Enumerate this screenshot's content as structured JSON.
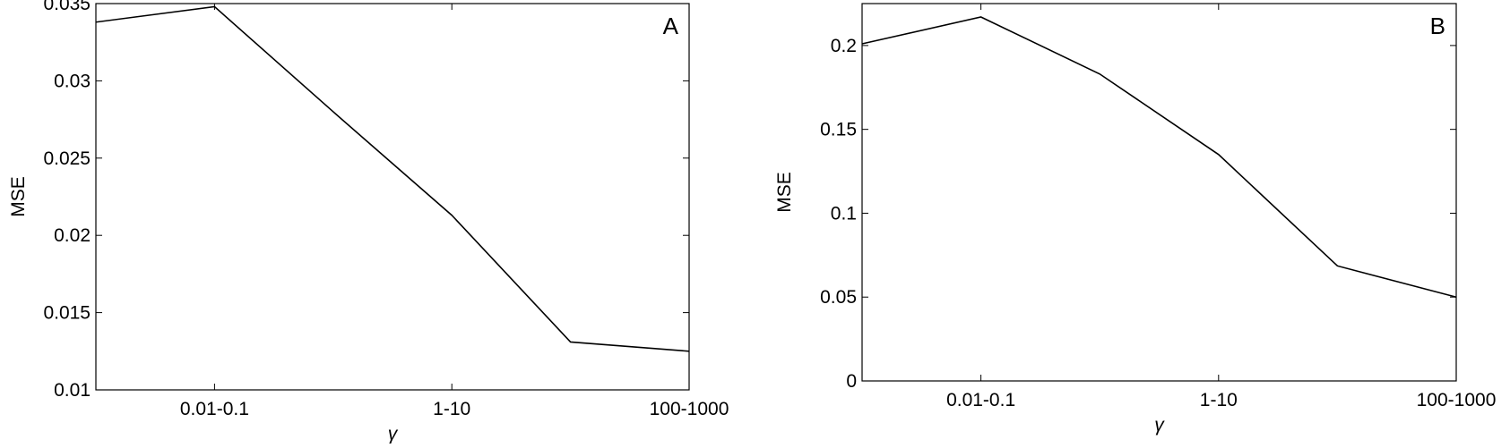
{
  "chart_data": [
    {
      "type": "line",
      "panel_label": "A",
      "y_label": "MSE",
      "x_label": "γ",
      "categories": [
        null,
        "0.01-0.1",
        null,
        "1-10",
        null,
        "100-1000"
      ],
      "series": [
        {
          "color": "#000000",
          "values": [
            0.0338,
            0.0348,
            0.028,
            0.0213,
            0.0131,
            0.0125
          ]
        }
      ],
      "ylim": [
        0.01,
        0.035
      ],
      "yticks": [
        0.01,
        0.015,
        0.02,
        0.025,
        0.03,
        0.035
      ]
    },
    {
      "type": "line",
      "panel_label": "B",
      "y_label": "MSE",
      "x_label": "γ",
      "categories": [
        null,
        "0.01-0.1",
        null,
        "1-10",
        null,
        "100-1000"
      ],
      "series": [
        {
          "color": "#000000",
          "values": [
            0.201,
            0.217,
            0.183,
            0.135,
            0.0686,
            0.05
          ]
        }
      ],
      "ylim": [
        0,
        0.225
      ],
      "yticks": [
        0,
        0.05,
        0.1,
        0.15,
        0.2
      ]
    }
  ]
}
